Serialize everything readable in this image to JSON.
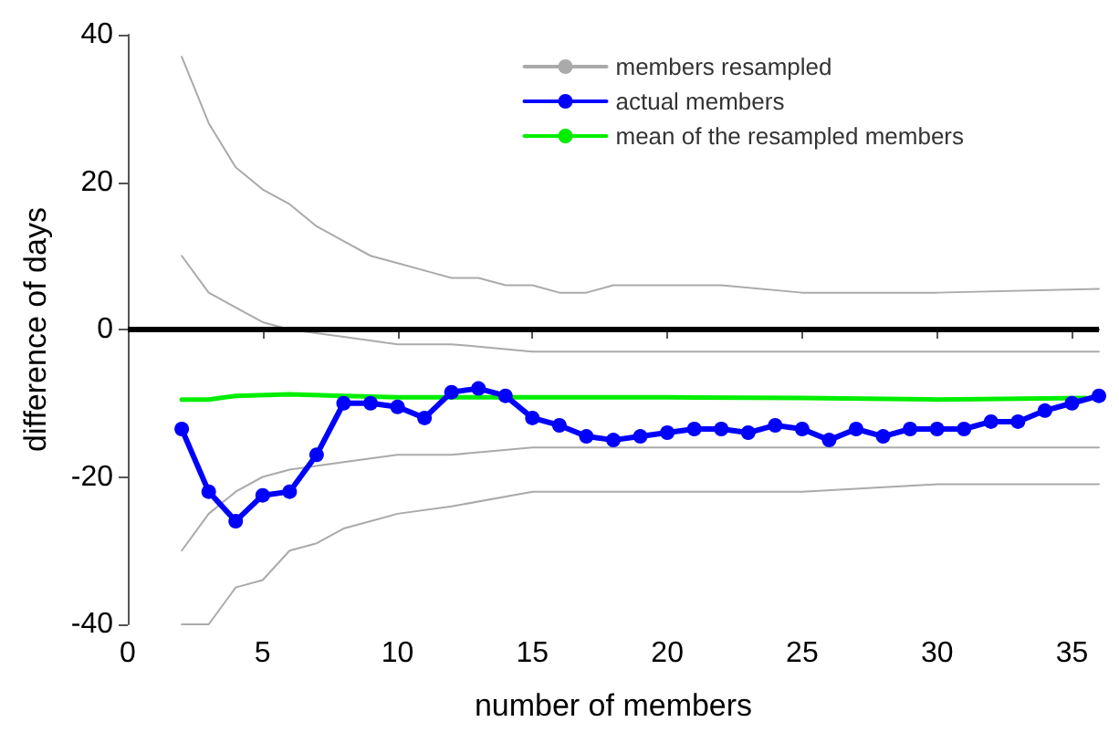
{
  "chart_data": {
    "type": "line",
    "xlabel": "number of members",
    "ylabel": "difference of days",
    "xlim": [
      0,
      36
    ],
    "xticks": [
      0,
      5,
      10,
      15,
      20,
      25,
      30,
      35
    ],
    "ylim": [
      -40,
      40
    ],
    "yticks": [
      -40,
      -20,
      0,
      20,
      40
    ],
    "grid": false,
    "legend": "top right",
    "ref_lines": [
      {
        "axis": "y",
        "value": 0,
        "color": "#000000"
      }
    ],
    "series": [
      {
        "name": "members resampled",
        "color": "#aaaaaa",
        "marker": "none",
        "x": [
          2,
          3,
          4,
          5,
          6,
          7,
          8,
          9,
          10,
          11,
          12,
          13,
          14,
          15,
          16,
          17,
          18,
          20,
          22,
          25,
          30,
          36
        ],
        "values": [
          37,
          28,
          22,
          19,
          17,
          14,
          12,
          10,
          9,
          8,
          7,
          7,
          6,
          6,
          5,
          5,
          6,
          6,
          6,
          5,
          5,
          5.5
        ]
      },
      {
        "color": "#aaaaaa",
        "marker": "none",
        "x": [
          2,
          3,
          4,
          5,
          6,
          8,
          10,
          12,
          15,
          20,
          25,
          30,
          36
        ],
        "values": [
          10,
          5,
          3,
          1,
          0,
          -1,
          -2,
          -2,
          -3,
          -3,
          -3,
          -3,
          -3
        ]
      },
      {
        "color": "#aaaaaa",
        "marker": "none",
        "x": [
          2,
          3,
          4,
          5,
          6,
          8,
          10,
          12,
          15,
          20,
          25,
          30,
          36
        ],
        "values": [
          -30,
          -25,
          -22,
          -20,
          -19,
          -18,
          -17,
          -17,
          -16,
          -16,
          -16,
          -16,
          -16
        ]
      },
      {
        "color": "#aaaaaa",
        "marker": "none",
        "x": [
          2,
          3,
          4,
          5,
          6,
          7,
          8,
          9,
          10,
          12,
          15,
          20,
          25,
          30,
          36
        ],
        "values": [
          -40,
          -40,
          -35,
          -34,
          -30,
          -29,
          -27,
          -26,
          -25,
          -24,
          -22,
          -22,
          -22,
          -21,
          -21
        ]
      },
      {
        "name": "actual members",
        "color": "#0000ff",
        "marker": "circle",
        "x": [
          2,
          3,
          4,
          5,
          6,
          7,
          8,
          9,
          10,
          11,
          12,
          13,
          14,
          15,
          16,
          17,
          18,
          19,
          20,
          21,
          22,
          23,
          24,
          25,
          26,
          27,
          28,
          29,
          30,
          31,
          32,
          33,
          34,
          35,
          36
        ],
        "values": [
          -13.5,
          -22,
          -26,
          -22.5,
          -22,
          -17,
          -10,
          -10,
          -10.5,
          -12,
          -8.5,
          -8,
          -9,
          -12,
          -13,
          -14.5,
          -15,
          -14.5,
          -14,
          -13.5,
          -13.5,
          -14,
          -13,
          -13.5,
          -15,
          -13.5,
          -14.5,
          -13.5,
          -13.5,
          -13.5,
          -12.5,
          -12.5,
          -11,
          -10,
          -9
        ]
      },
      {
        "name": "mean of the resampled members",
        "color": "#00ee00",
        "marker": "none",
        "x": [
          2,
          3,
          4,
          6,
          8,
          10,
          15,
          20,
          25,
          30,
          35.5
        ],
        "values": [
          -9.5,
          -9.5,
          -9,
          -8.8,
          -9,
          -9.2,
          -9.2,
          -9.2,
          -9.3,
          -9.5,
          -9.3
        ]
      }
    ]
  }
}
